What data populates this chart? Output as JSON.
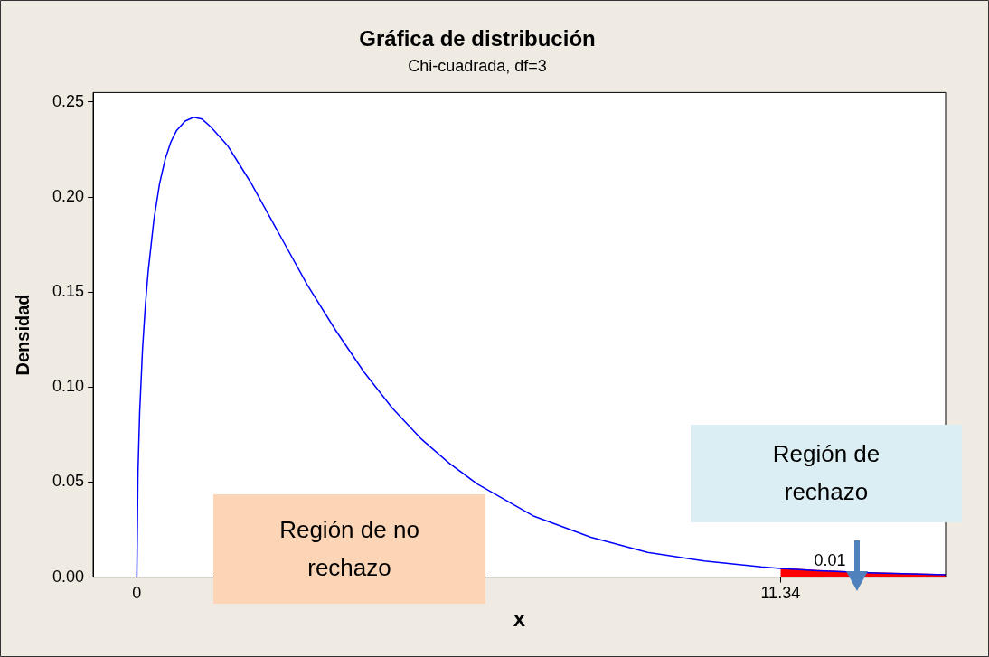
{
  "chart_data": {
    "type": "line",
    "title": "Gráfica de distribución",
    "subtitle": "Chi-cuadrada, df=3",
    "xlabel": "x",
    "ylabel": "Densidad",
    "xlim": [
      -0.77,
      14.25
    ],
    "xticks": [
      0,
      11.34
    ],
    "ylim": [
      0,
      0.255
    ],
    "yticks": [
      {
        "value": 0,
        "label": "0.00"
      },
      {
        "value": 0.05,
        "label": "0.05"
      },
      {
        "value": 0.1,
        "label": "0.10"
      },
      {
        "value": 0.15,
        "label": "0.15"
      },
      {
        "value": 0.2,
        "label": "0.20"
      },
      {
        "value": 0.25,
        "label": "0.25"
      }
    ],
    "series": [
      {
        "type": "area",
        "color": "#ff0000",
        "x": [
          11.34,
          12,
          13,
          14.25
        ],
        "values": [
          0.0046,
          0.0034,
          0.0022,
          0.0012
        ]
      },
      {
        "type": "line",
        "color": "#0000ff",
        "x": [
          0,
          0.02,
          0.05,
          0.1,
          0.15,
          0.2,
          0.3,
          0.4,
          0.5,
          0.6,
          0.7,
          0.85,
          1,
          1.15,
          1.3,
          1.6,
          2,
          2.5,
          3,
          3.5,
          4,
          4.5,
          5,
          5.5,
          6,
          7,
          8,
          9,
          10,
          11,
          11.34,
          12,
          13,
          14.25
        ],
        "values": [
          0,
          0.055,
          0.087,
          0.12,
          0.143,
          0.161,
          0.188,
          0.207,
          0.22,
          0.229,
          0.235,
          0.24,
          0.242,
          0.241,
          0.237,
          0.227,
          0.208,
          0.181,
          0.154,
          0.13,
          0.108,
          0.089,
          0.073,
          0.06,
          0.049,
          0.032,
          0.021,
          0.013,
          0.0085,
          0.0054,
          0.0046,
          0.0034,
          0.0022,
          0.0012
        ]
      }
    ],
    "annotations": [
      "Región de no rechazo",
      "Región de rechazo",
      "0.01"
    ],
    "marker": "none",
    "line_style": "solid",
    "grid": false,
    "legend": false
  }
}
